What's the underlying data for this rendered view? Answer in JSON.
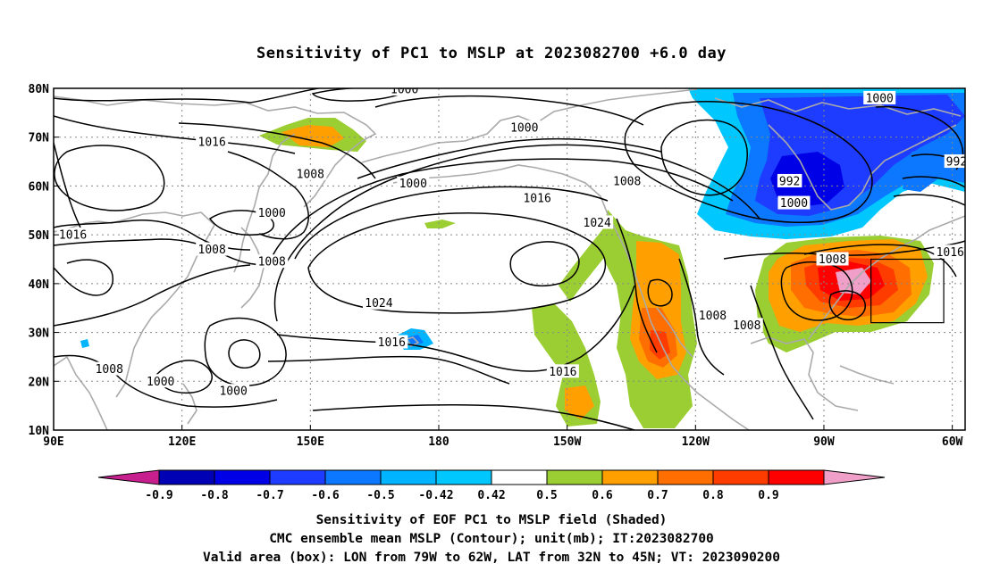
{
  "title": "Sensitivity of PC1 to MSLP at 2023082700 +6.0 day",
  "map": {
    "lon_range": [
      "90E",
      "57W"
    ],
    "lat_range": [
      "10N",
      "80N"
    ],
    "lat_ticks": [
      "80N",
      "70N",
      "60N",
      "50N",
      "40N",
      "30N",
      "20N",
      "10N"
    ],
    "lon_ticks": [
      "90E",
      "120E",
      "150E",
      "180",
      "150W",
      "120W",
      "90W",
      "60W"
    ],
    "contour_labels": [
      {
        "text": "1000",
        "lon": 172,
        "lat": 79.8
      },
      {
        "text": "1016",
        "lon": 127,
        "lat": 69
      },
      {
        "text": "1000",
        "lon": -160,
        "lat": 72
      },
      {
        "text": "1000",
        "lon": -77,
        "lat": 78
      },
      {
        "text": "1008",
        "lon": 150,
        "lat": 62.5
      },
      {
        "text": "1000",
        "lon": 174,
        "lat": 60.5
      },
      {
        "text": "1008",
        "lon": -136,
        "lat": 61
      },
      {
        "text": "992",
        "lon": -98,
        "lat": 61
      },
      {
        "text": "992",
        "lon": -59,
        "lat": 65
      },
      {
        "text": "1016",
        "lon": -157,
        "lat": 57.5
      },
      {
        "text": "1000",
        "lon": -97,
        "lat": 56.5
      },
      {
        "text": "1000",
        "lon": 141,
        "lat": 54.5
      },
      {
        "text": "1024",
        "lon": -143,
        "lat": 52.5
      },
      {
        "text": "1016",
        "lon": 94.5,
        "lat": 50
      },
      {
        "text": "1008",
        "lon": 127,
        "lat": 47
      },
      {
        "text": "1008",
        "lon": 141,
        "lat": 44.5
      },
      {
        "text": "1008",
        "lon": -88,
        "lat": 45
      },
      {
        "text": "1016",
        "lon": -60.5,
        "lat": 46.5
      },
      {
        "text": "1024",
        "lon": 166,
        "lat": 36
      },
      {
        "text": "1008",
        "lon": -116,
        "lat": 33.5
      },
      {
        "text": "1008",
        "lon": -108,
        "lat": 31.5
      },
      {
        "text": "1016",
        "lon": 169,
        "lat": 28
      },
      {
        "text": "1016",
        "lon": -151,
        "lat": 22
      },
      {
        "text": "1008",
        "lon": 103,
        "lat": 22.5
      },
      {
        "text": "1000",
        "lon": 115,
        "lat": 20
      },
      {
        "text": "1000",
        "lon": 132,
        "lat": 18
      }
    ],
    "valid_box": {
      "lon_min": -79,
      "lon_max": -62,
      "lat_min": 32,
      "lat_max": 45
    }
  },
  "colorbar": {
    "labels": [
      "-0.9",
      "-0.8",
      "-0.7",
      "-0.6",
      "-0.5",
      "-0.42",
      "0.42",
      "0.5",
      "0.6",
      "0.7",
      "0.8",
      "0.9"
    ],
    "colors": [
      "#c81f8f",
      "#0000b4",
      "#0000e6",
      "#1e3cff",
      "#0c78ff",
      "#00b4ff",
      "#00c8ff",
      "#ffffff",
      "#9ace32",
      "#ffa000",
      "#ff6e00",
      "#ff3c00",
      "#ff0000",
      "#f0a0c8"
    ]
  },
  "caption": {
    "line1": "Sensitivity of EOF PC1 to MSLP field (Shaded)",
    "line2": "CMC ensemble mean MSLP (Contour); unit(mb); IT:2023082700",
    "line3": "Valid area (box): LON from 79W to 62W, LAT from 32N to 45N; VT: 2023090200"
  }
}
